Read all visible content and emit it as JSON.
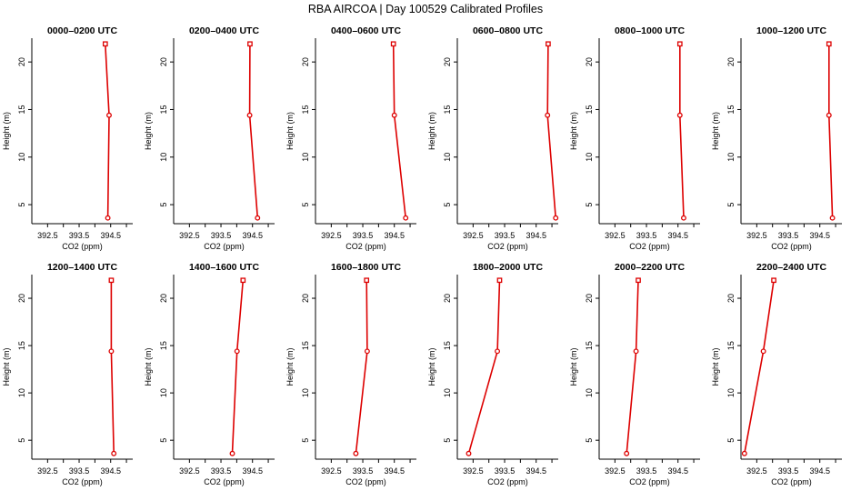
{
  "figure": {
    "title": "RBA AIRCOA |  Day 100529  Calibrated Profiles",
    "line_color": "#dd0000",
    "marker_color": "#dd0000"
  },
  "chart_data": [
    {
      "type": "line",
      "title": "0000–0200 UTC",
      "xlabel": "CO2 (ppm)",
      "ylabel": "Height (m)",
      "xlim": [
        392.0,
        395.2
      ],
      "ylim": [
        3,
        22.5
      ],
      "xticks": [
        "392.5",
        "393.5",
        "394.5"
      ],
      "yticks": [
        "5",
        "10",
        "15",
        "20"
      ],
      "grid": false,
      "series": [
        {
          "x": [
            394.33,
            394.45,
            394.41
          ],
          "y": [
            21.9,
            14.4,
            3.6
          ]
        }
      ]
    },
    {
      "type": "line",
      "title": "0200–0400 UTC",
      "xlabel": "CO2 (ppm)",
      "ylabel": "Height (m)",
      "xlim": [
        392.0,
        395.2
      ],
      "ylim": [
        3,
        22.5
      ],
      "xticks": [
        "392.5",
        "393.5",
        "394.5"
      ],
      "yticks": [
        "5",
        "10",
        "15",
        "20"
      ],
      "grid": false,
      "series": [
        {
          "x": [
            394.42,
            394.41,
            394.66
          ],
          "y": [
            21.9,
            14.4,
            3.6
          ]
        }
      ]
    },
    {
      "type": "line",
      "title": "0400–0600 UTC",
      "xlabel": "CO2 (ppm)",
      "ylabel": "Height (m)",
      "xlim": [
        392.0,
        395.2
      ],
      "ylim": [
        3,
        22.5
      ],
      "xticks": [
        "392.5",
        "393.5",
        "394.5"
      ],
      "yticks": [
        "5",
        "10",
        "15",
        "20"
      ],
      "grid": false,
      "series": [
        {
          "x": [
            394.47,
            394.5,
            394.86
          ],
          "y": [
            21.9,
            14.4,
            3.6
          ]
        }
      ]
    },
    {
      "type": "line",
      "title": "0600–0800 UTC",
      "xlabel": "CO2 (ppm)",
      "ylabel": "Height (m)",
      "xlim": [
        392.0,
        395.2
      ],
      "ylim": [
        3,
        22.5
      ],
      "xticks": [
        "392.5",
        "393.5",
        "394.5"
      ],
      "yticks": [
        "5",
        "10",
        "15",
        "20"
      ],
      "grid": false,
      "series": [
        {
          "x": [
            394.88,
            394.86,
            395.12
          ],
          "y": [
            21.9,
            14.4,
            3.6
          ]
        }
      ]
    },
    {
      "type": "line",
      "title": "0800–1000 UTC",
      "xlabel": "CO2 (ppm)",
      "ylabel": "Height (m)",
      "xlim": [
        392.0,
        395.2
      ],
      "ylim": [
        3,
        22.5
      ],
      "xticks": [
        "392.5",
        "393.5",
        "394.5"
      ],
      "yticks": [
        "5",
        "10",
        "15",
        "20"
      ],
      "grid": false,
      "series": [
        {
          "x": [
            394.56,
            394.56,
            394.68
          ],
          "y": [
            21.9,
            14.4,
            3.6
          ]
        }
      ]
    },
    {
      "type": "line",
      "title": "1000–1200 UTC",
      "xlabel": "CO2 (ppm)",
      "ylabel": "Height (m)",
      "xlim": [
        392.0,
        395.2
      ],
      "ylim": [
        3,
        22.5
      ],
      "xticks": [
        "392.5",
        "393.5",
        "394.5"
      ],
      "yticks": [
        "5",
        "10",
        "15",
        "20"
      ],
      "grid": false,
      "series": [
        {
          "x": [
            394.79,
            394.79,
            394.9
          ],
          "y": [
            21.9,
            14.4,
            3.6
          ]
        }
      ]
    },
    {
      "type": "line",
      "title": "1200–1400 UTC",
      "xlabel": "CO2 (ppm)",
      "ylabel": "Height (m)",
      "xlim": [
        392.0,
        395.2
      ],
      "ylim": [
        3,
        22.5
      ],
      "xticks": [
        "392.5",
        "393.5",
        "394.5"
      ],
      "yticks": [
        "5",
        "10",
        "15",
        "20"
      ],
      "grid": false,
      "series": [
        {
          "x": [
            394.52,
            394.52,
            394.6
          ],
          "y": [
            21.9,
            14.4,
            3.6
          ]
        }
      ]
    },
    {
      "type": "line",
      "title": "1400–1600 UTC",
      "xlabel": "CO2 (ppm)",
      "ylabel": "Height (m)",
      "xlim": [
        392.0,
        395.2
      ],
      "ylim": [
        3,
        22.5
      ],
      "xticks": [
        "392.5",
        "393.5",
        "394.5"
      ],
      "yticks": [
        "5",
        "10",
        "15",
        "20"
      ],
      "grid": false,
      "series": [
        {
          "x": [
            394.2,
            394.01,
            393.86
          ],
          "y": [
            21.9,
            14.4,
            3.6
          ]
        }
      ]
    },
    {
      "type": "line",
      "title": "1600–1800 UTC",
      "xlabel": "CO2 (ppm)",
      "ylabel": "Height (m)",
      "xlim": [
        392.0,
        395.2
      ],
      "ylim": [
        3,
        22.5
      ],
      "xticks": [
        "392.5",
        "393.5",
        "394.5"
      ],
      "yticks": [
        "5",
        "10",
        "15",
        "20"
      ],
      "grid": false,
      "series": [
        {
          "x": [
            393.62,
            393.64,
            393.28
          ],
          "y": [
            21.9,
            14.4,
            3.6
          ]
        }
      ]
    },
    {
      "type": "line",
      "title": "1800–2000 UTC",
      "xlabel": "CO2 (ppm)",
      "ylabel": "Height (m)",
      "xlim": [
        392.0,
        395.2
      ],
      "ylim": [
        3,
        22.5
      ],
      "xticks": [
        "392.5",
        "393.5",
        "394.5"
      ],
      "yticks": [
        "5",
        "10",
        "15",
        "20"
      ],
      "grid": false,
      "series": [
        {
          "x": [
            393.34,
            393.27,
            392.36
          ],
          "y": [
            21.9,
            14.4,
            3.6
          ]
        }
      ]
    },
    {
      "type": "line",
      "title": "2000–2200 UTC",
      "xlabel": "CO2 (ppm)",
      "ylabel": "Height (m)",
      "xlim": [
        392.0,
        395.2
      ],
      "ylim": [
        3,
        22.5
      ],
      "xticks": [
        "392.5",
        "393.5",
        "394.5"
      ],
      "yticks": [
        "5",
        "10",
        "15",
        "20"
      ],
      "grid": false,
      "series": [
        {
          "x": [
            393.24,
            393.17,
            392.87
          ],
          "y": [
            21.9,
            14.4,
            3.6
          ]
        }
      ]
    },
    {
      "type": "line",
      "title": "2200–2400 UTC",
      "xlabel": "CO2 (ppm)",
      "ylabel": "Height (m)",
      "xlim": [
        392.0,
        395.2
      ],
      "ylim": [
        3,
        22.5
      ],
      "xticks": [
        "392.5",
        "393.5",
        "394.5"
      ],
      "yticks": [
        "5",
        "10",
        "15",
        "20"
      ],
      "grid": false,
      "series": [
        {
          "x": [
            393.04,
            392.71,
            392.11
          ],
          "y": [
            21.9,
            14.4,
            3.6
          ]
        }
      ]
    }
  ]
}
